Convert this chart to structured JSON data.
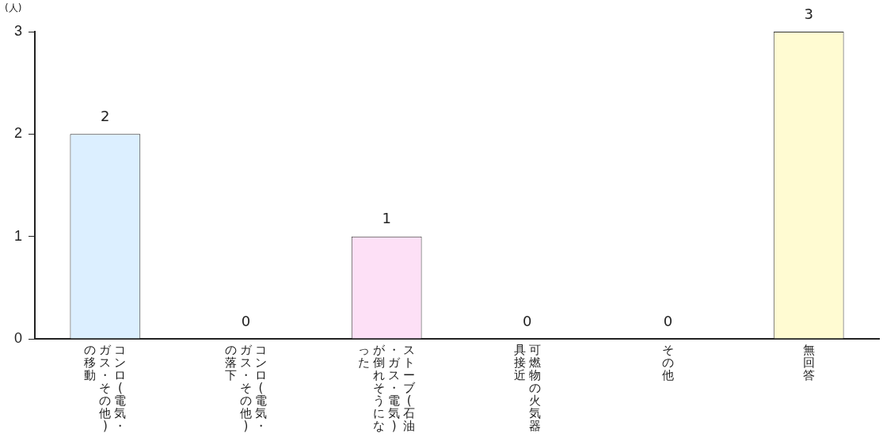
{
  "chart_data": {
    "type": "bar",
    "ylabel": "(人)",
    "categories": [
      "コンロ(電気・ガス・その他)の移動",
      "コンロ(電気・ガス・その他)の落下",
      "ストーブ(石油・ガス・電気)が倒れそうになった",
      "可燃物の火気器具接近",
      "その他",
      "無回答"
    ],
    "values": [
      2,
      0,
      1,
      0,
      0,
      3
    ],
    "colors": [
      "#dcefff",
      "#dcefff",
      "#fde0f6",
      "#fde0f6",
      "#fffbd2",
      "#fffbd2"
    ],
    "ylim": [
      0,
      3
    ],
    "yticks": [
      0,
      1,
      2,
      3
    ],
    "grid": false,
    "legend": false,
    "data_labels": true
  }
}
